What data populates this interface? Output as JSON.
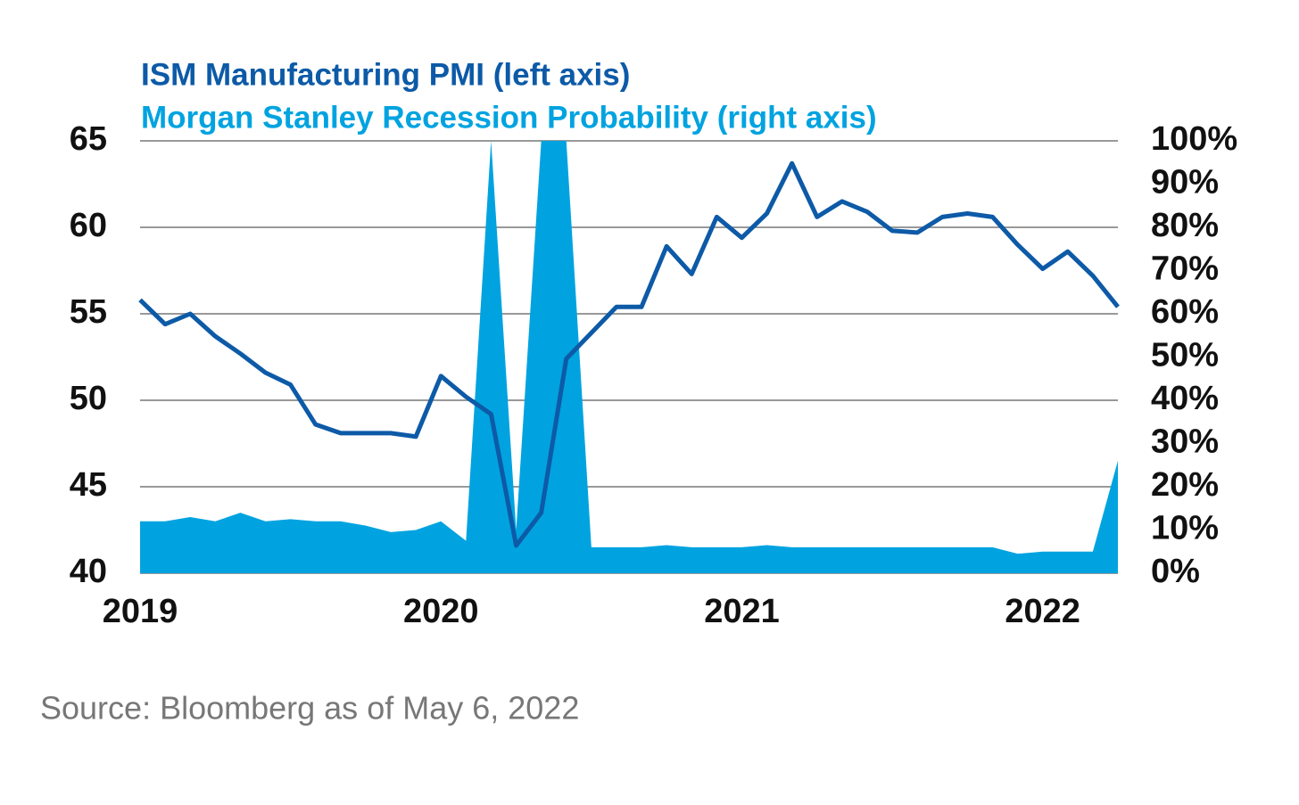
{
  "chart_data": {
    "type": "line",
    "categories": [
      "2019",
      null,
      null,
      null,
      null,
      null,
      null,
      null,
      null,
      null,
      null,
      null,
      "2020",
      null,
      null,
      null,
      null,
      null,
      null,
      null,
      null,
      null,
      null,
      null,
      "2021",
      null,
      null,
      null,
      null,
      null,
      null,
      null,
      null,
      null,
      null,
      null,
      "2022",
      null,
      null,
      null
    ],
    "series": [
      {
        "name": "ISM Manufacturing PMI (left axis)",
        "color": "#0d5aa7",
        "type": "line",
        "values": [
          55.8,
          54.4,
          55.0,
          53.7,
          52.7,
          51.6,
          50.9,
          48.6,
          48.1,
          48.1,
          48.1,
          47.9,
          51.4,
          50.2,
          49.2,
          41.6,
          43.5,
          52.4,
          53.9,
          55.4,
          55.4,
          58.9,
          57.3,
          60.6,
          59.4,
          60.8,
          63.7,
          60.6,
          61.5,
          60.9,
          59.8,
          59.7,
          60.6,
          60.8,
          60.6,
          59.0,
          57.6,
          58.6,
          57.2,
          55.4
        ]
      },
      {
        "name": "Morgan Stanley Recession Probability (right axis)",
        "color": "#00a3e0",
        "type": "area",
        "axis": "y2",
        "values": [
          12,
          12,
          13,
          12,
          14,
          12,
          12.5,
          12,
          12,
          11,
          9.5,
          10,
          12,
          7.5,
          100,
          10,
          100,
          100,
          6,
          6,
          6,
          6.5,
          6,
          6,
          6,
          6.5,
          6,
          6,
          6,
          6,
          6,
          6,
          6,
          6,
          6,
          4.5,
          5,
          5,
          5,
          26
        ]
      }
    ],
    "ylim": [
      40,
      65
    ],
    "yticks": [
      40,
      45,
      50,
      55,
      60,
      65
    ],
    "y2lim": [
      0,
      100
    ],
    "y2ticks": [
      {
        "value": 0,
        "label": "0%"
      },
      {
        "value": 10,
        "label": "10%"
      },
      {
        "value": 20,
        "label": "20%"
      },
      {
        "value": 30,
        "label": "30%"
      },
      {
        "value": 40,
        "label": "40%"
      },
      {
        "value": 50,
        "label": "50%"
      },
      {
        "value": 60,
        "label": "60%"
      },
      {
        "value": 70,
        "label": "70%"
      },
      {
        "value": 80,
        "label": "80%"
      },
      {
        "value": 90,
        "label": "90%"
      },
      {
        "value": 100,
        "label": "100%"
      }
    ],
    "grid": true,
    "source": "Source: Bloomberg as of May 6, 2022"
  }
}
